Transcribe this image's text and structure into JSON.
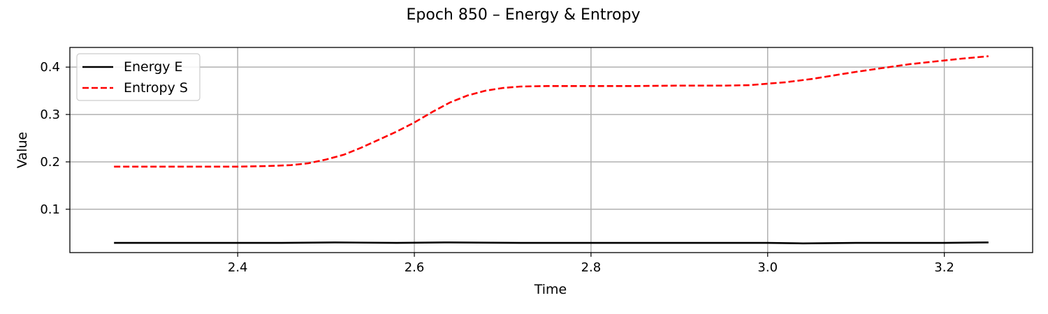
{
  "chart_data": {
    "type": "line",
    "title": "Epoch 850 – Energy & Entropy",
    "xlabel": "Time",
    "ylabel": "Value",
    "xlim": [
      2.21,
      3.3
    ],
    "ylim": [
      0.0085,
      0.4415
    ],
    "x_ticks": [
      2.4,
      2.6,
      2.8,
      3.0,
      3.2
    ],
    "x_tick_labels": [
      "2.4",
      "2.6",
      "2.8",
      "3.0",
      "3.2"
    ],
    "y_ticks": [
      0.1,
      0.2,
      0.3,
      0.4
    ],
    "y_tick_labels": [
      "0.1",
      "0.2",
      "0.3",
      "0.4"
    ],
    "grid": true,
    "legend_position": "top-left",
    "series": [
      {
        "name": "Energy E",
        "color": "#000000",
        "style": "solid",
        "x": [
          2.26,
          2.35,
          2.45,
          2.51,
          2.58,
          2.64,
          2.72,
          2.8,
          2.9,
          3.0,
          3.04,
          3.1,
          3.15,
          3.2,
          3.25
        ],
        "y": [
          0.029,
          0.029,
          0.029,
          0.03,
          0.029,
          0.03,
          0.029,
          0.029,
          0.029,
          0.029,
          0.028,
          0.029,
          0.029,
          0.029,
          0.03
        ]
      },
      {
        "name": "Entropy S",
        "color": "#ff0000",
        "style": "dashed",
        "x": [
          2.26,
          2.3,
          2.35,
          2.4,
          2.43,
          2.46,
          2.48,
          2.5,
          2.52,
          2.54,
          2.56,
          2.58,
          2.6,
          2.62,
          2.64,
          2.66,
          2.68,
          2.7,
          2.72,
          2.75,
          2.8,
          2.85,
          2.9,
          2.95,
          2.98,
          3.0,
          3.02,
          3.05,
          3.08,
          3.1,
          3.13,
          3.16,
          3.19,
          3.22,
          3.25
        ],
        "y": [
          0.19,
          0.19,
          0.19,
          0.19,
          0.191,
          0.193,
          0.197,
          0.205,
          0.215,
          0.23,
          0.247,
          0.264,
          0.283,
          0.305,
          0.325,
          0.34,
          0.35,
          0.356,
          0.359,
          0.36,
          0.36,
          0.36,
          0.361,
          0.361,
          0.362,
          0.365,
          0.368,
          0.375,
          0.384,
          0.39,
          0.398,
          0.406,
          0.412,
          0.418,
          0.423
        ]
      }
    ]
  }
}
